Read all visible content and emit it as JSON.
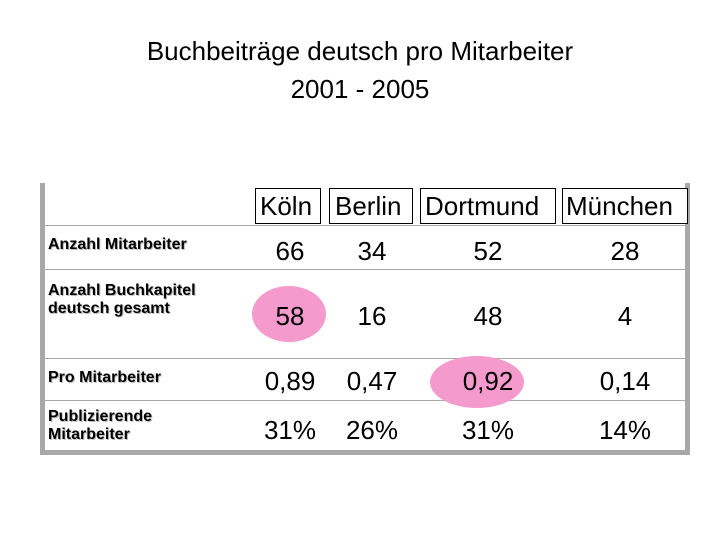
{
  "title": {
    "line1": "Buchbeiträge deutsch pro Mitarbeiter",
    "line2": "2001 - 2005"
  },
  "columns": [
    "Köln",
    "Berlin",
    "Dortmund",
    "München"
  ],
  "rows": [
    {
      "label": "Anzahl Mitarbeiter",
      "values": [
        "66",
        "34",
        "52",
        "28"
      ]
    },
    {
      "label_line1": "Anzahl Buchkapitel",
      "label_line2": "deutsch gesamt",
      "values": [
        "58",
        "16",
        "48",
        "4"
      ]
    },
    {
      "label": "Pro Mitarbeiter",
      "values": [
        "0,89",
        "0,47",
        "0,92",
        "0,14"
      ]
    },
    {
      "label_line1": "Publizierende",
      "label_line2": "Mitarbeiter",
      "values": [
        "31%",
        "26%",
        "31%",
        "14%"
      ]
    }
  ],
  "highlight_color": "#f49acd"
}
